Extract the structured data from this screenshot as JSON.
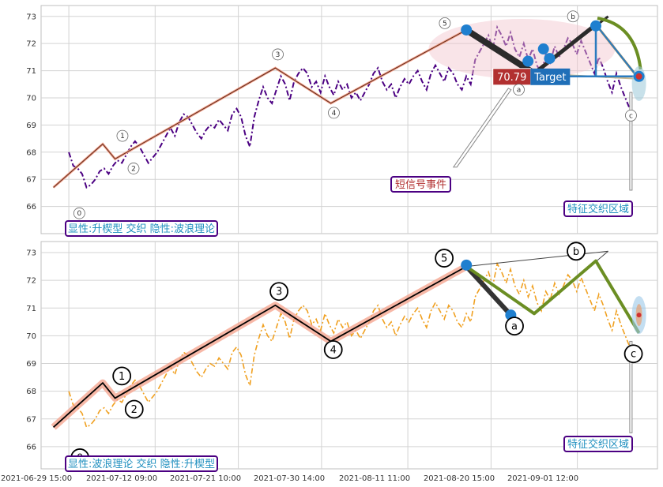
{
  "chart_data": [
    {
      "type": "line",
      "panel": "top",
      "ylim": [
        65,
        73.4
      ],
      "yticks": [
        66,
        67,
        68,
        69,
        70,
        71,
        72,
        73
      ],
      "series": [
        {
          "color": "#4b0082",
          "style": "dash-dot",
          "values": [
            68.0,
            67.5,
            67.4,
            67.2,
            66.7,
            66.8,
            67.0,
            67.3,
            67.4,
            67.2,
            67.5,
            67.7,
            67.6,
            67.9,
            68.2,
            68.4,
            68.2,
            67.9,
            67.6,
            67.8,
            68.0,
            68.3,
            68.6,
            68.9,
            68.6,
            69.1,
            69.4,
            69.3,
            69.0,
            68.7,
            68.5,
            68.8,
            69.0,
            68.9,
            69.2,
            69.0,
            68.8,
            69.4,
            69.6,
            69.3,
            68.6,
            68.2,
            69.3,
            69.9,
            70.4,
            70.0,
            69.8,
            70.3,
            70.8,
            70.5,
            69.9,
            70.6,
            70.9,
            71.1,
            70.9,
            70.4,
            70.6,
            70.2,
            70.8,
            70.4,
            70.1,
            70.6,
            70.3,
            70.5,
            70.0,
            70.2,
            69.9,
            70.2,
            70.5,
            70.9,
            71.1,
            70.6,
            70.3,
            70.5,
            70.0,
            70.4,
            70.7,
            70.5,
            70.8,
            71.0,
            70.6,
            70.3,
            70.9,
            71.2,
            70.9,
            70.6,
            71.1,
            70.9,
            70.5,
            70.3,
            70.8,
            70.5,
            71.4,
            71.7,
            72.0,
            72.3,
            71.8,
            72.6,
            72.3,
            71.9,
            72.4,
            71.8,
            71.5,
            72.0,
            71.4,
            71.8,
            71.2,
            70.9,
            71.6,
            71.3,
            71.9,
            71.5,
            71.8,
            72.2,
            72.0,
            71.6,
            72.1,
            71.7,
            71.3,
            70.9,
            71.5,
            71.1,
            70.6,
            70.2,
            70.9,
            70.4,
            70.0,
            69.6
          ]
        }
      ],
      "waves": [
        {
          "label": "0",
          "x": 0.02,
          "y": 66.7
        },
        {
          "label": "1",
          "x": 0.1,
          "y": 68.3
        },
        {
          "label": "2",
          "x": 0.12,
          "y": 67.75
        },
        {
          "label": "3",
          "x": 0.38,
          "y": 71.1
        },
        {
          "label": "4",
          "x": 0.47,
          "y": 69.8
        },
        {
          "label": "5",
          "x": 0.69,
          "y": 72.5
        },
        {
          "label": "a",
          "x": 0.8,
          "y": 70.9
        },
        {
          "label": "b",
          "x": 0.9,
          "y": 72.7
        },
        {
          "label": "c",
          "x": 0.97,
          "y": 70.7
        }
      ],
      "target_value": "70.79",
      "target_label": "Target",
      "annotations": {
        "legend": "显性:升楔型 交织 隐性:波浪理论",
        "short_signal": "短信号事件",
        "zone": "特征交织区域"
      }
    },
    {
      "type": "line",
      "panel": "bottom",
      "ylim": [
        65.2,
        73.4
      ],
      "yticks": [
        66,
        67,
        68,
        69,
        70,
        71,
        72,
        73
      ],
      "xticks": [
        "2021-06-29 15:00",
        "2021-07-12 09:00",
        "2021-07-21 10:00",
        "2021-07-30 14:00",
        "2021-08-11 11:00",
        "2021-08-20 15:00",
        "2021-09-01 12:00"
      ],
      "series": [
        {
          "color": "#f0a020",
          "style": "dash-dot",
          "values": [
            68.0,
            67.5,
            67.4,
            67.2,
            66.7,
            66.8,
            67.0,
            67.3,
            67.4,
            67.2,
            67.5,
            67.7,
            67.6,
            67.9,
            68.2,
            68.4,
            68.2,
            67.9,
            67.6,
            67.8,
            68.0,
            68.3,
            68.6,
            68.9,
            68.6,
            69.1,
            69.4,
            69.3,
            69.0,
            68.7,
            68.5,
            68.8,
            69.0,
            68.9,
            69.2,
            69.0,
            68.8,
            69.4,
            69.6,
            69.3,
            68.6,
            68.2,
            69.3,
            69.9,
            70.4,
            70.0,
            69.8,
            70.3,
            70.8,
            70.5,
            69.9,
            70.6,
            70.9,
            71.1,
            70.9,
            70.4,
            70.6,
            70.2,
            70.8,
            70.4,
            70.1,
            70.6,
            70.3,
            70.5,
            70.0,
            70.2,
            69.9,
            70.2,
            70.5,
            70.9,
            71.1,
            70.6,
            70.3,
            70.5,
            70.0,
            70.4,
            70.7,
            70.5,
            70.8,
            71.0,
            70.6,
            70.3,
            70.9,
            71.2,
            70.9,
            70.6,
            71.1,
            70.9,
            70.5,
            70.3,
            70.8,
            70.5,
            71.4,
            71.7,
            72.0,
            72.3,
            71.8,
            72.6,
            72.3,
            71.9,
            72.4,
            71.8,
            71.5,
            72.0,
            71.4,
            71.8,
            71.2,
            70.9,
            71.6,
            71.3,
            71.9,
            71.5,
            71.8,
            72.2,
            72.0,
            71.6,
            72.1,
            71.7,
            71.3,
            70.9,
            71.5,
            71.1,
            70.6,
            70.2,
            70.9,
            70.4,
            70.0,
            69.6
          ]
        }
      ],
      "waves": [
        {
          "label": "0",
          "x": 0.02,
          "y": 66.7
        },
        {
          "label": "1",
          "x": 0.1,
          "y": 68.3
        },
        {
          "label": "2",
          "x": 0.12,
          "y": 67.75
        },
        {
          "label": "3",
          "x": 0.38,
          "y": 71.1
        },
        {
          "label": "4",
          "x": 0.47,
          "y": 69.8
        },
        {
          "label": "5",
          "x": 0.69,
          "y": 72.5
        },
        {
          "label": "a",
          "x": 0.8,
          "y": 70.8
        },
        {
          "label": "b",
          "x": 0.9,
          "y": 72.7
        },
        {
          "label": "c",
          "x": 0.97,
          "y": 70.1
        }
      ],
      "annotations": {
        "legend": "显性:波浪理论 交织 隐性:升楔型",
        "zone": "特征交织区域"
      }
    }
  ]
}
